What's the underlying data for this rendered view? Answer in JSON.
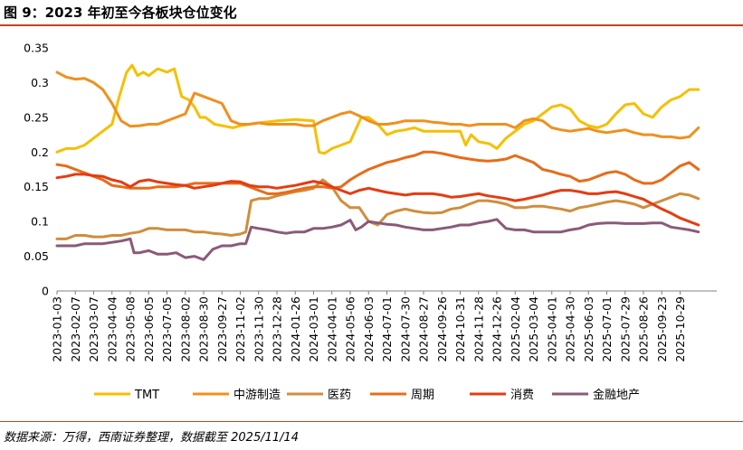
{
  "figure_title": "图 9：2023 年初至今各板块仓位变化",
  "source_note": "数据来源：万得，西南证券整理，数据截至 2025/11/14",
  "chart_data": {
    "type": "line",
    "title": "图 9：2023 年初至今各板块仓位变化",
    "xlabel": "",
    "ylabel": "",
    "ylim": [
      0,
      0.35
    ],
    "yticks": [
      0,
      0.05,
      0.1,
      0.15,
      0.2,
      0.25,
      0.3,
      0.35
    ],
    "grid": false,
    "legend_position": "bottom",
    "x_tick_labels": [
      "2023-01-03",
      "2023-02-07",
      "2023-03-07",
      "2023-04-04",
      "2023-05-08",
      "2023-06-05",
      "2023-07-05",
      "2023-08-02",
      "2023-08-30",
      "2023-09-27",
      "2023-11-02",
      "2023-11-30",
      "2023-12-28",
      "2024-01-26",
      "2024-03-01",
      "2024-04-01",
      "2024-05-06",
      "2024-06-03",
      "2024-07-01",
      "2024-07-30",
      "2024-08-27",
      "2024-09-26",
      "2024-10-31",
      "2024-11-28",
      "2024-12-26",
      "2025-02-04",
      "2025-03-04",
      "2025-04-01",
      "2025-04-30",
      "2025-06-03",
      "2025-07-01",
      "2025-07-29",
      "2025-08-26",
      "2025-09-23",
      "2025-10-29"
    ],
    "x_range": [
      0,
      36
    ],
    "series": [
      {
        "name": "TMT",
        "color": "#f5c000",
        "x": [
          0,
          0.5,
          1,
          1.5,
          2,
          2.5,
          3,
          3.4,
          3.8,
          4.1,
          4.4,
          4.7,
          5,
          5.5,
          6,
          6.4,
          6.8,
          7.2,
          7.5,
          7.8,
          8.1,
          8.6,
          9.2,
          9.6,
          10,
          10.5,
          11,
          12,
          13,
          14,
          14.3,
          14.6,
          15,
          15.5,
          16,
          16.6,
          17,
          17.5,
          18,
          18.5,
          19,
          19.5,
          20,
          21,
          22,
          22.3,
          22.6,
          23,
          23.6,
          24,
          24.5,
          25,
          25.5,
          26,
          26.5,
          27,
          27.5,
          28,
          28.5,
          29,
          29.5,
          30,
          30.5,
          31,
          31.5,
          32,
          32.5,
          33,
          33.5,
          34,
          34.5,
          35
        ],
        "y": [
          0.2,
          0.205,
          0.205,
          0.21,
          0.22,
          0.23,
          0.24,
          0.28,
          0.315,
          0.325,
          0.31,
          0.315,
          0.31,
          0.32,
          0.315,
          0.32,
          0.28,
          0.275,
          0.265,
          0.25,
          0.25,
          0.24,
          0.237,
          0.235,
          0.238,
          0.24,
          0.242,
          0.245,
          0.247,
          0.245,
          0.2,
          0.198,
          0.205,
          0.21,
          0.215,
          0.25,
          0.25,
          0.24,
          0.225,
          0.23,
          0.232,
          0.235,
          0.23,
          0.23,
          0.23,
          0.21,
          0.225,
          0.215,
          0.212,
          0.205,
          0.22,
          0.23,
          0.24,
          0.245,
          0.255,
          0.265,
          0.268,
          0.262,
          0.245,
          0.238,
          0.235,
          0.24,
          0.255,
          0.268,
          0.27,
          0.255,
          0.25,
          0.265,
          0.275,
          0.28,
          0.29,
          0.29
        ]
      },
      {
        "name": "中游制造",
        "color": "#f0901e",
        "x": [
          0,
          0.5,
          1,
          1.5,
          2,
          2.5,
          3,
          3.5,
          4,
          4.5,
          5,
          5.5,
          6,
          6.5,
          7,
          7.5,
          8,
          8.5,
          9,
          9.5,
          10,
          10.5,
          11,
          11.5,
          12,
          12.5,
          13,
          13.5,
          14,
          14.5,
          15,
          15.5,
          16,
          16.5,
          17,
          17.5,
          18,
          18.5,
          19,
          19.5,
          20,
          20.5,
          21,
          21.5,
          22,
          22.5,
          23,
          23.5,
          24,
          24.5,
          25,
          25.5,
          26,
          26.5,
          27,
          27.5,
          28,
          28.5,
          29,
          29.5,
          30,
          30.5,
          31,
          31.5,
          32,
          32.5,
          33,
          33.5,
          34,
          34.5,
          35
        ],
        "y": [
          0.315,
          0.308,
          0.305,
          0.306,
          0.3,
          0.29,
          0.27,
          0.245,
          0.237,
          0.238,
          0.24,
          0.24,
          0.245,
          0.25,
          0.255,
          0.285,
          0.28,
          0.275,
          0.27,
          0.245,
          0.24,
          0.24,
          0.242,
          0.24,
          0.24,
          0.24,
          0.24,
          0.238,
          0.238,
          0.245,
          0.25,
          0.255,
          0.258,
          0.252,
          0.245,
          0.24,
          0.24,
          0.242,
          0.245,
          0.245,
          0.245,
          0.243,
          0.242,
          0.24,
          0.24,
          0.238,
          0.24,
          0.24,
          0.24,
          0.24,
          0.235,
          0.245,
          0.248,
          0.245,
          0.235,
          0.232,
          0.23,
          0.232,
          0.234,
          0.23,
          0.228,
          0.23,
          0.232,
          0.228,
          0.225,
          0.225,
          0.222,
          0.222,
          0.22,
          0.222,
          0.235
        ]
      },
      {
        "name": "医药",
        "color": "#d08d3c",
        "x": [
          0,
          0.5,
          1,
          1.5,
          2,
          2.5,
          3,
          3.5,
          4,
          4.5,
          5,
          5.5,
          6,
          6.5,
          7,
          7.5,
          8,
          8.5,
          9,
          9.5,
          10,
          10.3,
          10.6,
          11,
          11.5,
          12,
          12.5,
          13,
          13.5,
          14,
          14.5,
          15,
          15.5,
          16,
          16.5,
          17,
          17.5,
          18,
          18.5,
          19,
          19.5,
          20,
          20.5,
          21,
          21.5,
          22,
          22.5,
          23,
          23.5,
          24,
          24.5,
          25,
          25.5,
          26,
          26.5,
          27,
          27.5,
          28,
          28.5,
          29,
          29.5,
          30,
          30.5,
          31,
          31.5,
          32,
          32.5,
          33,
          33.5,
          34,
          34.5,
          35
        ],
        "y": [
          0.075,
          0.075,
          0.08,
          0.08,
          0.078,
          0.078,
          0.08,
          0.08,
          0.083,
          0.085,
          0.09,
          0.09,
          0.088,
          0.088,
          0.088,
          0.085,
          0.085,
          0.083,
          0.082,
          0.08,
          0.082,
          0.085,
          0.13,
          0.133,
          0.133,
          0.137,
          0.14,
          0.143,
          0.145,
          0.148,
          0.16,
          0.15,
          0.13,
          0.12,
          0.12,
          0.1,
          0.095,
          0.11,
          0.115,
          0.118,
          0.115,
          0.113,
          0.112,
          0.113,
          0.118,
          0.12,
          0.125,
          0.13,
          0.13,
          0.128,
          0.125,
          0.12,
          0.12,
          0.122,
          0.122,
          0.12,
          0.118,
          0.115,
          0.12,
          0.122,
          0.125,
          0.128,
          0.13,
          0.128,
          0.125,
          0.12,
          0.125,
          0.13,
          0.135,
          0.14,
          0.138,
          0.133
        ]
      },
      {
        "name": "周期",
        "color": "#e86c18",
        "x": [
          0,
          0.5,
          1,
          1.5,
          2,
          2.5,
          3,
          3.5,
          4,
          4.5,
          5,
          5.5,
          6,
          6.5,
          7,
          7.5,
          8,
          8.5,
          9,
          9.5,
          10,
          10.5,
          11,
          11.5,
          12,
          12.5,
          13,
          13.5,
          14,
          14.5,
          15,
          15.5,
          16,
          16.5,
          17,
          17.5,
          18,
          18.5,
          19,
          19.5,
          20,
          20.5,
          21,
          21.5,
          22,
          22.5,
          23,
          23.5,
          24,
          24.5,
          25,
          25.5,
          26,
          26.5,
          27,
          27.5,
          28,
          28.5,
          29,
          29.5,
          30,
          30.5,
          31,
          31.5,
          32,
          32.5,
          33,
          33.5,
          34,
          34.5,
          35
        ],
        "y": [
          0.182,
          0.18,
          0.175,
          0.17,
          0.165,
          0.16,
          0.152,
          0.15,
          0.148,
          0.148,
          0.148,
          0.15,
          0.15,
          0.15,
          0.152,
          0.155,
          0.155,
          0.155,
          0.155,
          0.155,
          0.155,
          0.15,
          0.145,
          0.14,
          0.14,
          0.142,
          0.145,
          0.148,
          0.15,
          0.15,
          0.148,
          0.15,
          0.16,
          0.168,
          0.175,
          0.18,
          0.185,
          0.188,
          0.192,
          0.195,
          0.2,
          0.2,
          0.198,
          0.195,
          0.192,
          0.19,
          0.188,
          0.187,
          0.188,
          0.19,
          0.195,
          0.19,
          0.185,
          0.175,
          0.172,
          0.168,
          0.165,
          0.158,
          0.16,
          0.165,
          0.17,
          0.172,
          0.168,
          0.16,
          0.155,
          0.155,
          0.16,
          0.17,
          0.18,
          0.185,
          0.175
        ]
      },
      {
        "name": "消费",
        "color": "#e43c12",
        "x": [
          0,
          0.5,
          1,
          1.5,
          2,
          2.5,
          3,
          3.5,
          4,
          4.5,
          5,
          5.5,
          6,
          6.5,
          7,
          7.5,
          8,
          8.5,
          9,
          9.5,
          10,
          10.5,
          11,
          11.5,
          12,
          12.5,
          13,
          13.5,
          14,
          14.5,
          15,
          15.5,
          16,
          16.5,
          17,
          17.5,
          18,
          18.5,
          19,
          19.5,
          20,
          20.5,
          21,
          21.5,
          22,
          22.5,
          23,
          23.5,
          24,
          24.5,
          25,
          25.5,
          26,
          26.5,
          27,
          27.5,
          28,
          28.5,
          29,
          29.5,
          30,
          30.5,
          31,
          31.5,
          32,
          32.5,
          33,
          33.5,
          34,
          34.5,
          35
        ],
        "y": [
          0.163,
          0.165,
          0.168,
          0.168,
          0.166,
          0.165,
          0.16,
          0.157,
          0.15,
          0.158,
          0.16,
          0.157,
          0.155,
          0.153,
          0.152,
          0.148,
          0.15,
          0.152,
          0.155,
          0.158,
          0.157,
          0.152,
          0.15,
          0.15,
          0.148,
          0.15,
          0.152,
          0.155,
          0.158,
          0.155,
          0.15,
          0.145,
          0.14,
          0.145,
          0.148,
          0.145,
          0.142,
          0.14,
          0.138,
          0.14,
          0.14,
          0.14,
          0.138,
          0.135,
          0.136,
          0.138,
          0.14,
          0.137,
          0.135,
          0.133,
          0.13,
          0.132,
          0.135,
          0.138,
          0.142,
          0.145,
          0.145,
          0.143,
          0.14,
          0.14,
          0.142,
          0.143,
          0.14,
          0.136,
          0.132,
          0.125,
          0.118,
          0.112,
          0.105,
          0.1,
          0.095
        ]
      },
      {
        "name": "金融地产",
        "color": "#8a5a78",
        "x": [
          0,
          0.5,
          1,
          1.5,
          2,
          2.5,
          3,
          3.5,
          4,
          4.2,
          4.5,
          5,
          5.5,
          6,
          6.5,
          7,
          7.5,
          8,
          8.5,
          9,
          9.5,
          10,
          10.3,
          10.6,
          11,
          11.5,
          12,
          12.5,
          13,
          13.5,
          14,
          14.5,
          15,
          15.5,
          16,
          16.3,
          16.6,
          17,
          17.5,
          18,
          18.5,
          19,
          19.5,
          20,
          20.5,
          21,
          21.5,
          22,
          22.5,
          23,
          23.5,
          24,
          24.5,
          25,
          25.5,
          26,
          26.5,
          27,
          27.5,
          28,
          28.5,
          29,
          29.5,
          30,
          30.5,
          31,
          31.5,
          32,
          32.5,
          33,
          33.5,
          34,
          34.5,
          35
        ],
        "y": [
          0.065,
          0.065,
          0.065,
          0.068,
          0.068,
          0.068,
          0.07,
          0.072,
          0.075,
          0.055,
          0.055,
          0.058,
          0.053,
          0.053,
          0.055,
          0.048,
          0.05,
          0.045,
          0.06,
          0.065,
          0.065,
          0.068,
          0.068,
          0.092,
          0.09,
          0.088,
          0.085,
          0.083,
          0.085,
          0.085,
          0.09,
          0.09,
          0.092,
          0.095,
          0.102,
          0.088,
          0.092,
          0.1,
          0.098,
          0.096,
          0.095,
          0.092,
          0.09,
          0.088,
          0.088,
          0.09,
          0.092,
          0.095,
          0.095,
          0.098,
          0.1,
          0.103,
          0.09,
          0.088,
          0.088,
          0.085,
          0.085,
          0.085,
          0.085,
          0.088,
          0.09,
          0.095,
          0.097,
          0.098,
          0.098,
          0.097,
          0.097,
          0.097,
          0.098,
          0.098,
          0.092,
          0.09,
          0.088,
          0.085
        ]
      }
    ]
  }
}
